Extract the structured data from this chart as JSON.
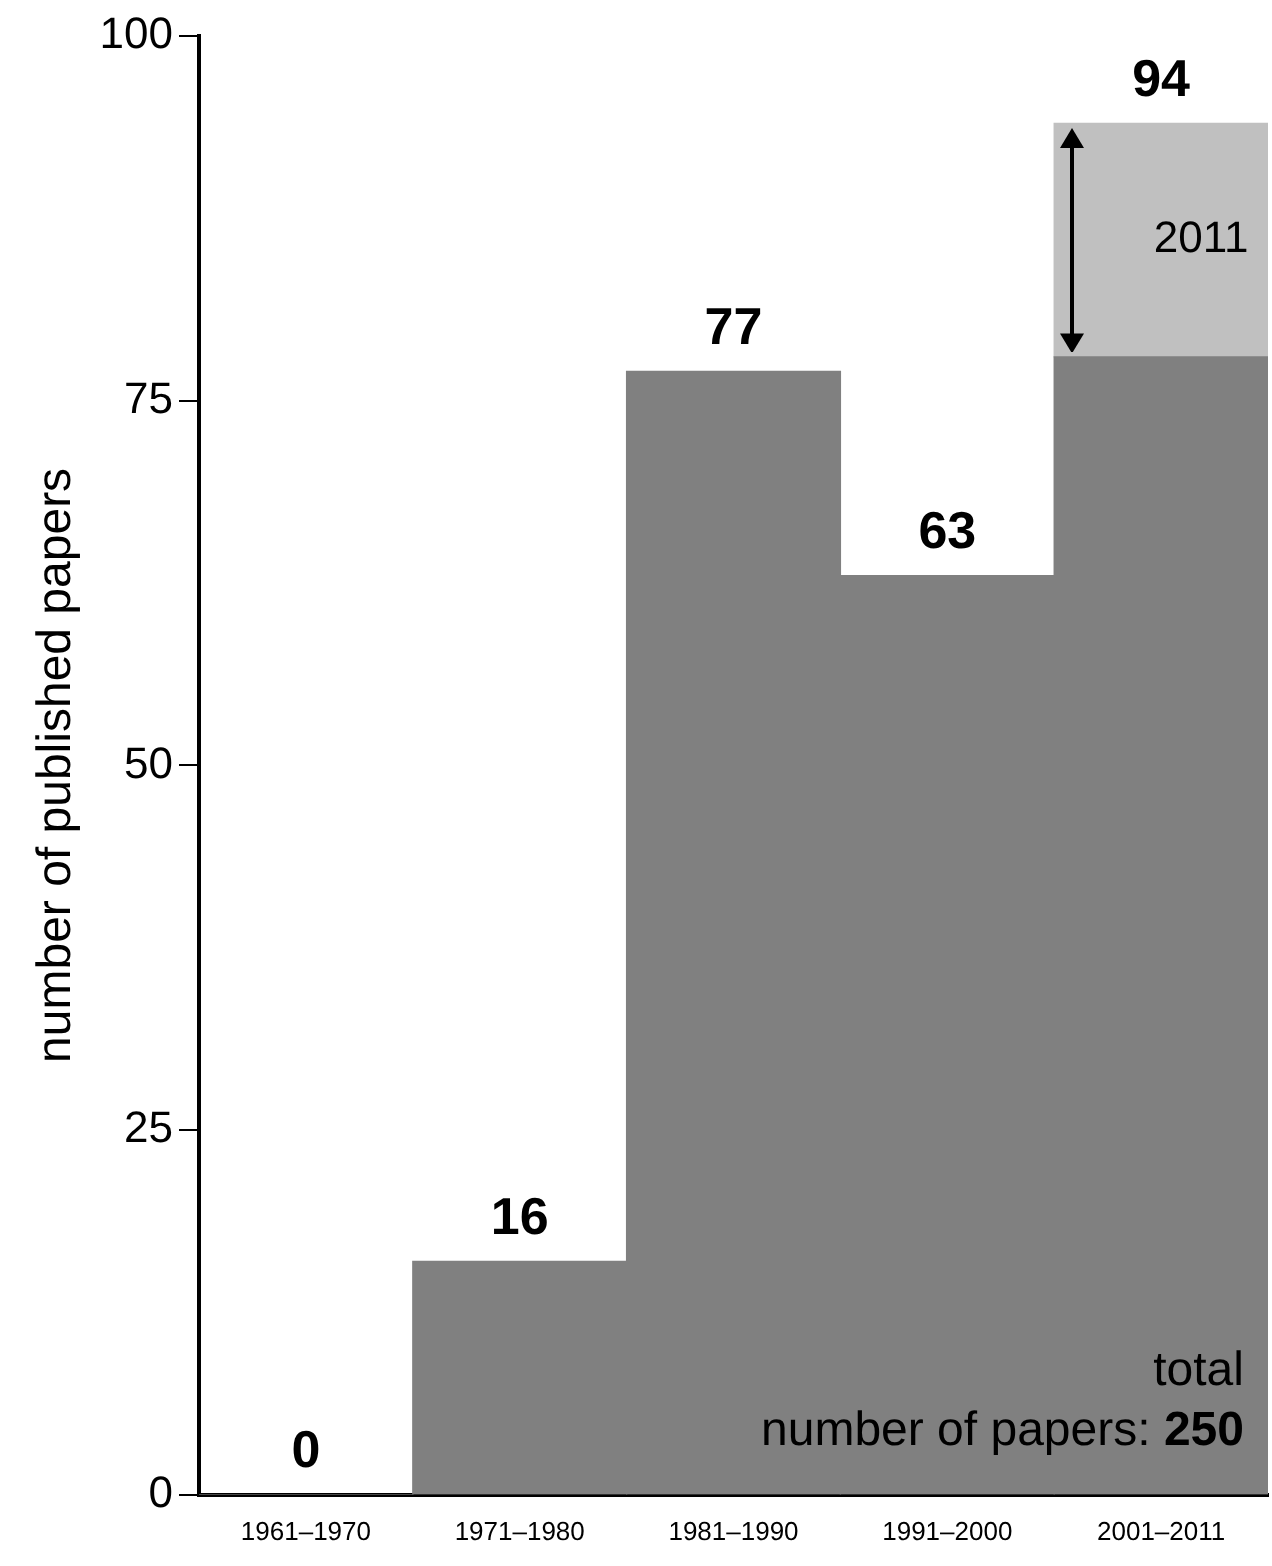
{
  "chart_data": {
    "type": "bar",
    "stacked": true,
    "ylabel": "number of published papers",
    "categories": [
      "1961–1970",
      "1971–1980",
      "1981–1990",
      "1991–2000",
      "2001–2011"
    ],
    "series": [
      {
        "color": "#808080",
        "values": [
          0,
          16,
          77,
          63,
          78
        ]
      },
      {
        "name": "2011",
        "color": "#c0c0c0",
        "values": [
          null,
          null,
          null,
          null,
          16
        ]
      }
    ],
    "totals": [
      "0",
      "16",
      "77",
      "63",
      "94"
    ],
    "ylim": [
      0,
      100
    ],
    "yticks": [
      0,
      25,
      50,
      75,
      100
    ],
    "grid": false,
    "legend": false,
    "annotations": [
      "total number of papers: 250"
    ]
  }
}
